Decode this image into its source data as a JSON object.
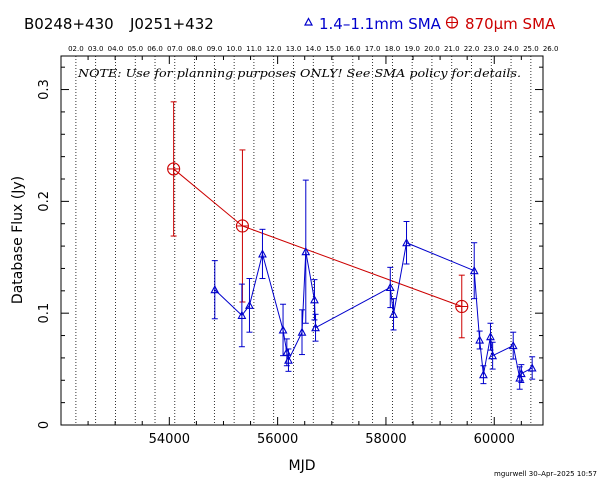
{
  "header": {
    "source_name": "B0248+430",
    "alt_name": "J0251+432",
    "legend_blue": "1.4–1.1mm SMA",
    "legend_red": "870μm SMA"
  },
  "note": "NOTE: Use for planning purposes ONLY! See SMA policy for details.",
  "footer": "mgurwell 30–Apr–2025 10:57",
  "colors": {
    "blue": "#0000cc",
    "red": "#cc0000",
    "axis": "#000000"
  },
  "chart_data": {
    "type": "scatter",
    "xlabel": "MJD",
    "ylabel": "Database Flux (Jy)",
    "xlim": [
      52000,
      60900
    ],
    "ylim": [
      0,
      0.33
    ],
    "x_ticks": [
      54000,
      56000,
      58000,
      60000
    ],
    "x_tick_labels": [
      "54000",
      "56000",
      "58000",
      "60000"
    ],
    "y_ticks": [
      0,
      0.1,
      0.2,
      0.3
    ],
    "y_tick_labels": [
      "0",
      "0.1",
      "0.2",
      "0.3"
    ],
    "top_axis": {
      "label_mjd": [
        52275,
        52640,
        53005,
        53371,
        53736,
        54101,
        54466,
        54832,
        55197,
        55562,
        55927,
        56293,
        56658,
        57023,
        57388,
        57754,
        58119,
        58484,
        58849,
        59215,
        59580,
        59945,
        60310,
        60676
      ],
      "labels": [
        "02.0",
        "03.0",
        "04.0",
        "05.0",
        "06.0",
        "07.0",
        "08.0",
        "09.0",
        "10.0",
        "11.0",
        "12.0",
        "13.0",
        "14.0",
        "15.0",
        "16.0",
        "17.0",
        "18.0",
        "19.0",
        "20.0",
        "21.0",
        "22.0",
        "23.0",
        "24.0",
        "25.0",
        "26.0"
      ],
      "label_mjd_full": [
        52275,
        52640,
        53005,
        53371,
        53736,
        54101,
        54466,
        54832,
        55197,
        55562,
        55927,
        56293,
        56658,
        57023,
        57388,
        57754,
        58119,
        58484,
        58849,
        59215,
        59580,
        59945,
        60310,
        60676,
        61041
      ],
      "year_lines_mjd": [
        52275,
        52640,
        53005,
        53371,
        53736,
        54101,
        54466,
        54832,
        55197,
        55562,
        55927,
        56293,
        56658,
        57023,
        57388,
        57754,
        58119,
        58484,
        58849,
        59215,
        59580,
        59945,
        60310,
        60676
      ]
    },
    "series": [
      {
        "name": "1.4–1.1mm SMA",
        "marker": "triangle",
        "color": "#0000cc",
        "points": [
          {
            "x": 54840,
            "y": 0.121,
            "err": 0.026
          },
          {
            "x": 55340,
            "y": 0.098,
            "err": 0.028
          },
          {
            "x": 55480,
            "y": 0.107,
            "err": 0.024
          },
          {
            "x": 55720,
            "y": 0.153,
            "err": 0.022
          },
          {
            "x": 56100,
            "y": 0.085,
            "err": 0.023
          },
          {
            "x": 56170,
            "y": 0.065,
            "err": 0.012
          },
          {
            "x": 56200,
            "y": 0.058,
            "err": 0.01
          },
          {
            "x": 56450,
            "y": 0.083,
            "err": 0.02
          },
          {
            "x": 56520,
            "y": 0.155,
            "err": 0.064
          },
          {
            "x": 56680,
            "y": 0.112,
            "err": 0.018
          },
          {
            "x": 56700,
            "y": 0.087,
            "err": 0.012
          },
          {
            "x": 58080,
            "y": 0.123,
            "err": 0.018
          },
          {
            "x": 58140,
            "y": 0.099,
            "err": 0.014
          },
          {
            "x": 58380,
            "y": 0.163,
            "err": 0.019
          },
          {
            "x": 59630,
            "y": 0.138,
            "err": 0.025
          },
          {
            "x": 59730,
            "y": 0.076,
            "err": 0.008
          },
          {
            "x": 59800,
            "y": 0.045,
            "err": 0.008
          },
          {
            "x": 59930,
            "y": 0.079,
            "err": 0.012
          },
          {
            "x": 59970,
            "y": 0.062,
            "err": 0.012
          },
          {
            "x": 60350,
            "y": 0.071,
            "err": 0.012
          },
          {
            "x": 60470,
            "y": 0.042,
            "err": 0.01
          },
          {
            "x": 60500,
            "y": 0.046,
            "err": 0.008
          },
          {
            "x": 60700,
            "y": 0.051,
            "err": 0.01
          }
        ]
      },
      {
        "name": "870μm SMA",
        "marker": "circle-plus",
        "color": "#cc0000",
        "points": [
          {
            "x": 54080,
            "y": 0.229,
            "err": 0.06
          },
          {
            "x": 55350,
            "y": 0.178,
            "err": 0.068
          },
          {
            "x": 59400,
            "y": 0.106,
            "err": 0.028
          }
        ]
      }
    ]
  }
}
